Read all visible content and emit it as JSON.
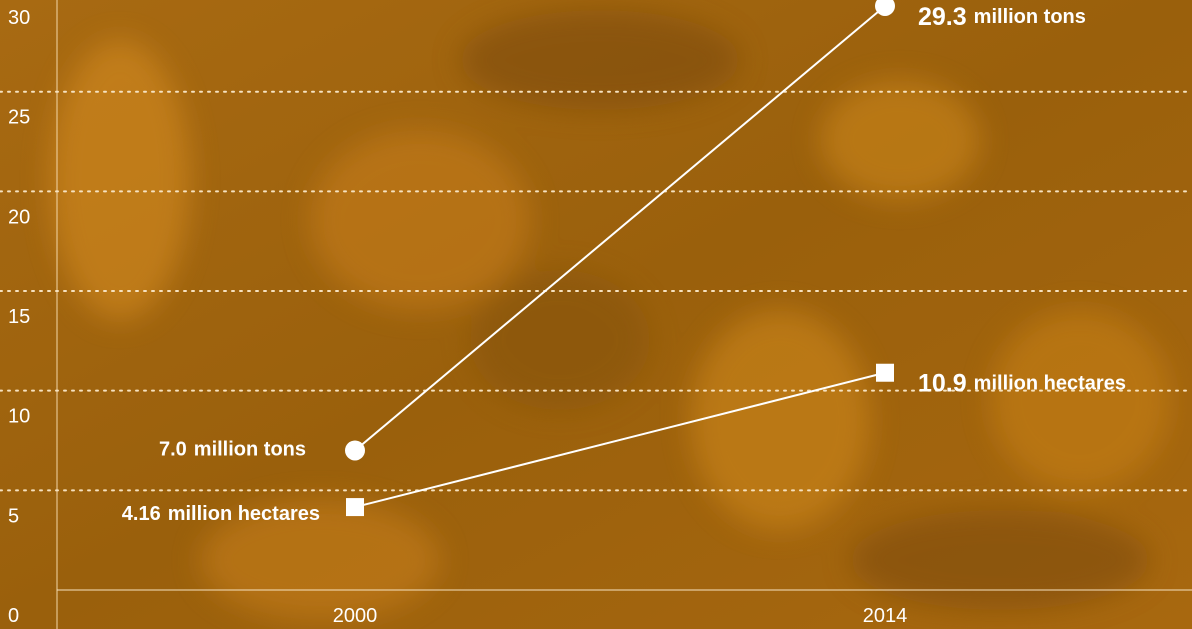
{
  "chart_data": {
    "type": "line",
    "categories": [
      "2000",
      "2014"
    ],
    "series": [
      {
        "name": "million tons",
        "color": "#ffffff",
        "marker": "circle",
        "values": [
          7.0,
          29.3
        ],
        "value_labels": [
          "7.0",
          "29.3"
        ]
      },
      {
        "name": "million hectares",
        "color": "#ffffff",
        "marker": "square",
        "values": [
          4.16,
          10.9
        ],
        "value_labels": [
          "4.16",
          "10.9"
        ]
      }
    ],
    "ylim": [
      0,
      29.6
    ],
    "yticks": [
      0,
      5,
      10,
      15,
      20,
      25,
      30
    ],
    "grid": true
  }
}
